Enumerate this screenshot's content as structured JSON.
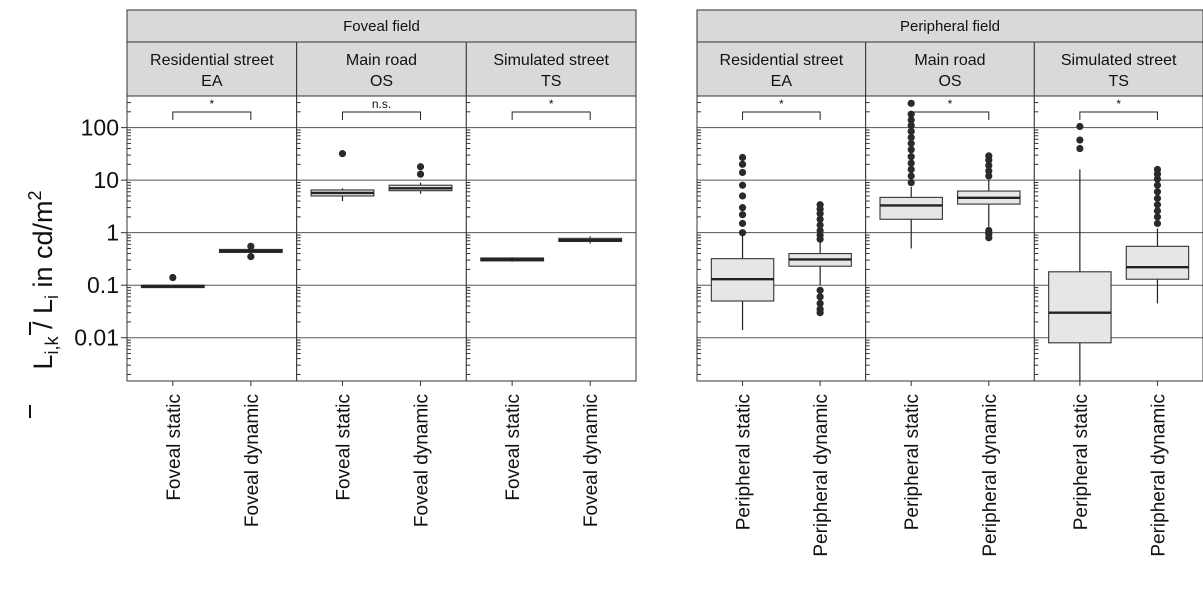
{
  "y_axis_label": {
    "main": "L",
    "sub1": "i,k",
    "sep": " / ",
    "sub2": "i",
    "unit": " in cd/m",
    "sup": "2"
  },
  "chart_data": [
    {
      "type": "boxplot",
      "title": "Foveal field",
      "y_scale": "log",
      "ylim": [
        0.0015,
        400
      ],
      "y_ticks": [
        {
          "value": 100,
          "label": "100"
        },
        {
          "value": 10,
          "label": "10"
        },
        {
          "value": 1,
          "label": "1"
        },
        {
          "value": 0.1,
          "label": "0.1"
        },
        {
          "value": 0.01,
          "label": "0.01"
        }
      ],
      "grid": true,
      "facets": [
        {
          "title_line1": "Residential street",
          "title_line2": "EA",
          "significance": "*",
          "categories": [
            "Foveal static",
            "Foveal dynamic"
          ],
          "boxes": [
            {
              "q1": 0.09,
              "median": 0.095,
              "q3": 0.1,
              "whisker_low": 0.09,
              "whisker_high": 0.1,
              "outliers": [
                0.14
              ]
            },
            {
              "q1": 0.42,
              "median": 0.45,
              "q3": 0.48,
              "whisker_low": 0.4,
              "whisker_high": 0.5,
              "outliers": [
                0.35,
                0.55
              ]
            }
          ]
        },
        {
          "title_line1": "Main road",
          "title_line2": "OS",
          "significance": "n.s.",
          "categories": [
            "Foveal static",
            "Foveal dynamic"
          ],
          "boxes": [
            {
              "q1": 5,
              "median": 5.7,
              "q3": 6.5,
              "whisker_low": 4,
              "whisker_high": 7,
              "outliers": [
                32
              ]
            },
            {
              "q1": 6.3,
              "median": 7,
              "q3": 8,
              "whisker_low": 5.5,
              "whisker_high": 9,
              "outliers": [
                13,
                18
              ]
            }
          ]
        },
        {
          "title_line1": "Simulated street",
          "title_line2": "TS",
          "significance": "*",
          "categories": [
            "Foveal static",
            "Foveal dynamic"
          ],
          "boxes": [
            {
              "q1": 0.29,
              "median": 0.31,
              "q3": 0.33,
              "whisker_low": 0.28,
              "whisker_high": 0.34,
              "outliers": []
            },
            {
              "q1": 0.68,
              "median": 0.72,
              "q3": 0.78,
              "whisker_low": 0.62,
              "whisker_high": 0.85,
              "outliers": []
            }
          ]
        }
      ]
    },
    {
      "type": "boxplot",
      "title": "Peripheral field",
      "y_scale": "log",
      "ylim": [
        0.0015,
        400
      ],
      "grid": true,
      "facets": [
        {
          "title_line1": "Residential street",
          "title_line2": "EA",
          "significance": "*",
          "categories": [
            "Peripheral static",
            "Peripheral dynamic"
          ],
          "boxes": [
            {
              "q1": 0.05,
              "median": 0.13,
              "q3": 0.32,
              "whisker_low": 0.014,
              "whisker_high": 0.9,
              "outliers": [
                1.0,
                1.5,
                2.2,
                3.0,
                5.0,
                8.0,
                14,
                20,
                27
              ]
            },
            {
              "q1": 0.23,
              "median": 0.31,
              "q3": 0.4,
              "whisker_low": 0.1,
              "whisker_high": 0.65,
              "outliers": [
                0.03,
                0.035,
                0.045,
                0.06,
                0.08,
                0.75,
                0.9,
                1.1,
                1.4,
                1.8,
                2.3,
                2.8,
                3.4
              ]
            }
          ]
        },
        {
          "title_line1": "Main road",
          "title_line2": "OS",
          "significance": "*",
          "categories": [
            "Peripheral static",
            "Peripheral dynamic"
          ],
          "boxes": [
            {
              "q1": 1.8,
              "median": 3.3,
              "q3": 4.7,
              "whisker_low": 0.5,
              "whisker_high": 7.5,
              "outliers": [
                9,
                12,
                16,
                21,
                28,
                38,
                50,
                65,
                85,
                110,
                140,
                180,
                290
              ]
            },
            {
              "q1": 3.5,
              "median": 4.6,
              "q3": 6.2,
              "whisker_low": 1.3,
              "whisker_high": 10,
              "outliers": [
                0.8,
                0.95,
                1.1,
                12,
                15,
                19,
                24,
                29
              ]
            }
          ]
        },
        {
          "title_line1": "Simulated street",
          "title_line2": "TS",
          "significance": "*",
          "categories": [
            "Peripheral static",
            "Peripheral dynamic"
          ],
          "boxes": [
            {
              "q1": 0.008,
              "median": 0.03,
              "q3": 0.18,
              "whisker_low": 0.0015,
              "whisker_high": 16,
              "outliers": [
                40,
                58,
                105
              ]
            },
            {
              "q1": 0.13,
              "median": 0.22,
              "q3": 0.55,
              "whisker_low": 0.045,
              "whisker_high": 1.2,
              "outliers": [
                1.5,
                2.0,
                2.6,
                3.4,
                4.5,
                6.0,
                8.0,
                10.5,
                13,
                16
              ]
            }
          ]
        }
      ]
    }
  ]
}
